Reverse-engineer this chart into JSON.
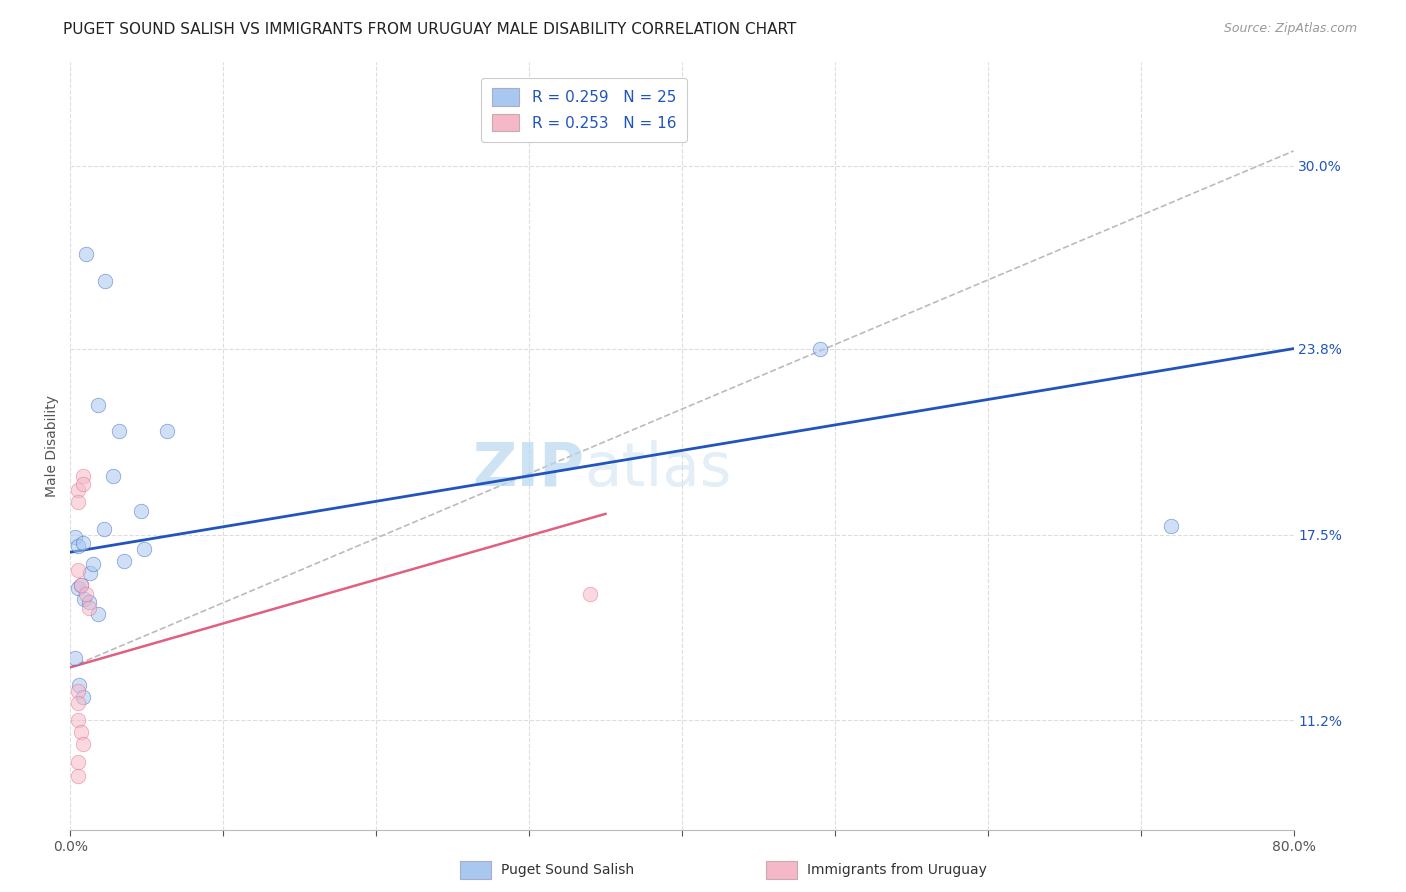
{
  "title": "PUGET SOUND SALISH VS IMMIGRANTS FROM URUGUAY MALE DISABILITY CORRELATION CHART",
  "source": "Source: ZipAtlas.com",
  "ylabel": "Male Disability",
  "yticks": [
    0.112,
    0.175,
    0.238,
    0.3
  ],
  "ytick_labels": [
    "11.2%",
    "17.5%",
    "23.8%",
    "30.0%"
  ],
  "xlim": [
    0.0,
    0.8
  ],
  "ylim": [
    0.075,
    0.335
  ],
  "blue_R": "0.259",
  "blue_N": "25",
  "pink_R": "0.253",
  "pink_N": "16",
  "legend_label1": "Puget Sound Salish",
  "legend_label2": "Immigrants from Uruguay",
  "blue_color": "#a8c8f0",
  "pink_color": "#f5b8c8",
  "blue_line_color": "#2255bb",
  "pink_line_color": "#e06080",
  "blue_line_start_y": 0.169,
  "blue_line_end_y": 0.238,
  "pink_line_start_y": 0.13,
  "pink_line_end_x": 0.35,
  "pink_line_end_y": 0.182,
  "gray_line_start_x": 0.0,
  "gray_line_start_y": 0.13,
  "gray_line_end_x": 0.8,
  "gray_line_end_y": 0.305,
  "blue_x": [
    0.018,
    0.023,
    0.01,
    0.032,
    0.028,
    0.003,
    0.005,
    0.008,
    0.013,
    0.015,
    0.005,
    0.007,
    0.009,
    0.012,
    0.018,
    0.022,
    0.035,
    0.046,
    0.048,
    0.063,
    0.003,
    0.006,
    0.008,
    0.49,
    0.72
  ],
  "blue_y": [
    0.219,
    0.261,
    0.27,
    0.21,
    0.195,
    0.174,
    0.171,
    0.172,
    0.162,
    0.165,
    0.157,
    0.158,
    0.153,
    0.152,
    0.148,
    0.177,
    0.166,
    0.183,
    0.17,
    0.21,
    0.133,
    0.124,
    0.12,
    0.238,
    0.178
  ],
  "pink_x": [
    0.005,
    0.005,
    0.008,
    0.008,
    0.005,
    0.007,
    0.01,
    0.012,
    0.005,
    0.005,
    0.005,
    0.007,
    0.008,
    0.34,
    0.005,
    0.005
  ],
  "pink_y": [
    0.19,
    0.186,
    0.195,
    0.192,
    0.163,
    0.158,
    0.155,
    0.15,
    0.122,
    0.118,
    0.112,
    0.108,
    0.104,
    0.155,
    0.098,
    0.093
  ],
  "background_color": "#ffffff",
  "grid_color": "#dddddd",
  "title_fontsize": 11,
  "axis_label_fontsize": 10,
  "tick_fontsize": 10,
  "legend_fontsize": 11,
  "marker_size": 110,
  "marker_alpha": 0.55
}
